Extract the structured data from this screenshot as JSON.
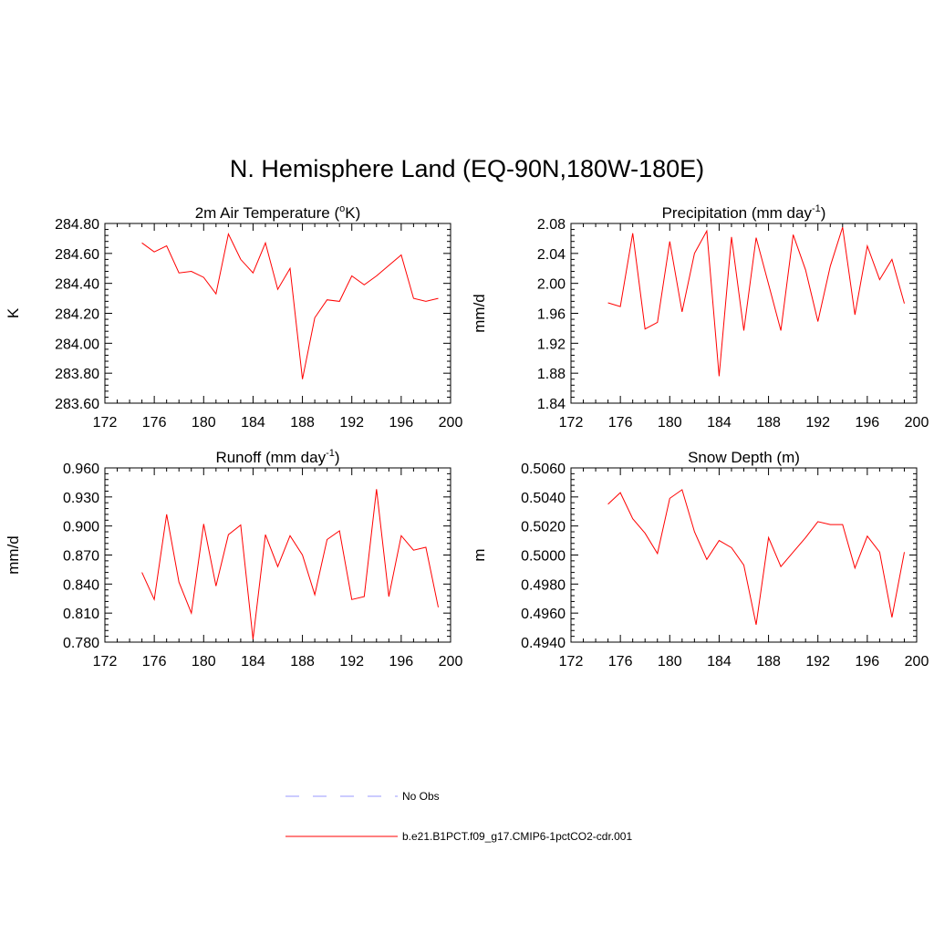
{
  "title": "N. Hemisphere Land (EQ-90N,180W-180E)",
  "colors": {
    "model": "#ff0000",
    "obs": "#9999ff",
    "axis": "#000000"
  },
  "legend": {
    "obs_label": "No Obs",
    "model_label": "b.e21.B1PCT.f09_g17.CMIP6-1pctCO2-cdr.001"
  },
  "chart_data": [
    {
      "type": "line",
      "title_main": "2m Air Temperature (",
      "title_sup": "o",
      "title_end": "K)",
      "ylabel": "K",
      "xlim": [
        172,
        200
      ],
      "ylim": [
        283.6,
        284.8
      ],
      "xticks": [
        "172",
        "176",
        "180",
        "184",
        "188",
        "192",
        "196",
        "200"
      ],
      "yticks": [
        "283.60",
        "283.80",
        "284.00",
        "284.20",
        "284.40",
        "284.60",
        "284.80"
      ],
      "x": [
        175,
        176,
        177,
        178,
        179,
        180,
        181,
        182,
        183,
        184,
        185,
        186,
        187,
        188,
        189,
        190,
        191,
        192,
        193,
        194,
        195,
        196,
        197,
        198,
        199
      ],
      "series": [
        {
          "values": [
            284.67,
            284.61,
            284.65,
            284.47,
            284.48,
            284.44,
            284.33,
            284.73,
            284.56,
            284.47,
            284.67,
            284.36,
            284.5,
            283.76,
            284.17,
            284.29,
            284.28,
            284.45,
            284.39,
            284.45,
            284.52,
            284.59,
            284.3,
            284.28,
            284.3
          ]
        }
      ]
    },
    {
      "type": "line",
      "title_main": "Precipitation (mm day",
      "title_sup": "-1",
      "title_end": ")",
      "ylabel": "mm/d",
      "xlim": [
        172,
        200
      ],
      "ylim": [
        1.84,
        2.08
      ],
      "xticks": [
        "172",
        "176",
        "180",
        "184",
        "188",
        "192",
        "196",
        "200"
      ],
      "yticks": [
        "1.84",
        "1.88",
        "1.92",
        "1.96",
        "2.00",
        "2.04",
        "2.08"
      ],
      "x": [
        175,
        176,
        177,
        178,
        179,
        180,
        181,
        182,
        183,
        184,
        185,
        186,
        187,
        188,
        189,
        190,
        191,
        192,
        193,
        194,
        195,
        196,
        197,
        198,
        199
      ],
      "series": [
        {
          "values": [
            1.974,
            1.969,
            2.067,
            1.939,
            1.948,
            2.056,
            1.962,
            2.04,
            2.07,
            1.876,
            2.062,
            1.937,
            2.061,
            1.999,
            1.937,
            2.065,
            2.018,
            1.949,
            2.023,
            2.075,
            1.958,
            2.05,
            2.005,
            2.032,
            1.973
          ]
        }
      ]
    },
    {
      "type": "line",
      "title_main": "Runoff (mm day",
      "title_sup": "-1",
      "title_end": ")",
      "ylabel": "mm/d",
      "xlim": [
        172,
        200
      ],
      "ylim": [
        0.78,
        0.96
      ],
      "xticks": [
        "172",
        "176",
        "180",
        "184",
        "188",
        "192",
        "196",
        "200"
      ],
      "yticks": [
        "0.780",
        "0.810",
        "0.840",
        "0.870",
        "0.900",
        "0.930",
        "0.960"
      ],
      "x": [
        175,
        176,
        177,
        178,
        179,
        180,
        181,
        182,
        183,
        184,
        185,
        186,
        187,
        188,
        189,
        190,
        191,
        192,
        193,
        194,
        195,
        196,
        197,
        198,
        199
      ],
      "series": [
        {
          "values": [
            0.852,
            0.824,
            0.912,
            0.842,
            0.81,
            0.902,
            0.838,
            0.891,
            0.901,
            0.783,
            0.891,
            0.858,
            0.89,
            0.87,
            0.829,
            0.886,
            0.895,
            0.824,
            0.827,
            0.938,
            0.827,
            0.89,
            0.875,
            0.878,
            0.816
          ]
        }
      ]
    },
    {
      "type": "line",
      "title_main": "Snow Depth (m)",
      "title_sup": "",
      "title_end": "",
      "ylabel": "m",
      "xlim": [
        172,
        200
      ],
      "ylim": [
        0.494,
        0.506
      ],
      "xticks": [
        "172",
        "176",
        "180",
        "184",
        "188",
        "192",
        "196",
        "200"
      ],
      "yticks": [
        "0.4940",
        "0.4960",
        "0.4980",
        "0.5000",
        "0.5020",
        "0.5040",
        "0.5060"
      ],
      "x": [
        175,
        176,
        177,
        178,
        179,
        180,
        181,
        182,
        183,
        184,
        185,
        186,
        187,
        188,
        189,
        190,
        191,
        192,
        193,
        194,
        195,
        196,
        197,
        198,
        199
      ],
      "series": [
        {
          "values": [
            0.5035,
            0.5043,
            0.5025,
            0.5015,
            0.5001,
            0.5039,
            0.5045,
            0.5016,
            0.4997,
            0.501,
            0.5005,
            0.4993,
            0.4952,
            0.5012,
            0.4992,
            0.5002,
            0.5012,
            0.5023,
            0.5021,
            0.5021,
            0.4991,
            0.5013,
            0.5002,
            0.4957,
            0.5002
          ]
        }
      ]
    }
  ]
}
